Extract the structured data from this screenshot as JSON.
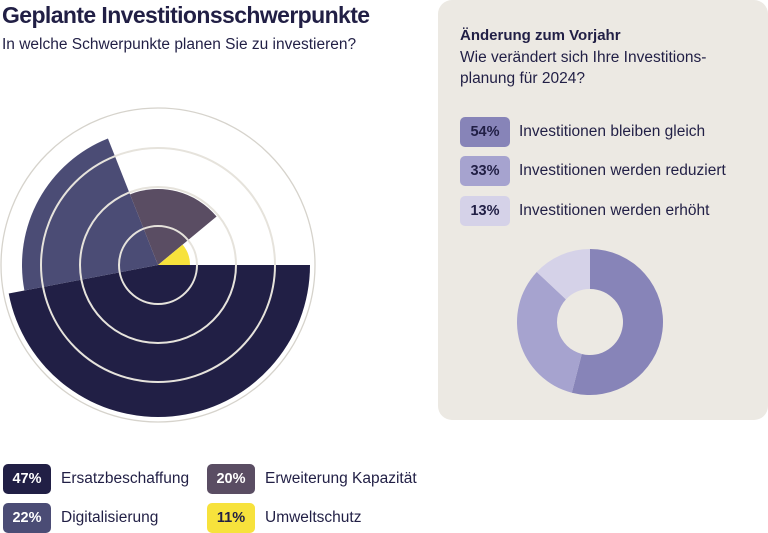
{
  "header": {
    "title": "Geplante Investitionsschwerpunkte",
    "subtitle": "In welche Schwerpunkte planen Sie zu investieren?"
  },
  "chart_data": [
    {
      "type": "polar-area",
      "series": [
        {
          "label": "Ersatzbeschaffung",
          "value": 47,
          "display": "47%",
          "color": "#211f45",
          "text_color": "#ffffff"
        },
        {
          "label": "Digitalisierung",
          "value": 22,
          "display": "22%",
          "color": "#4b4c75",
          "text_color": "#ffffff"
        },
        {
          "label": "Erweiterung Kapazität",
          "value": 20,
          "display": "20%",
          "color": "#5a4d63",
          "text_color": "#ffffff"
        },
        {
          "label": "Umweltschutz",
          "value": 11,
          "display": "11%",
          "color": "#f7e23c",
          "text_color": "#211f45"
        }
      ],
      "grid": true,
      "legend": "bottom"
    },
    {
      "type": "donut",
      "title": "Änderung zum Vorjahr",
      "subtitle": "Wie verändert sich Ihre Investitions-planung für 2024?",
      "series": [
        {
          "label": "Investitionen bleiben gleich",
          "value": 54,
          "display": "54%",
          "color": "#8784b8"
        },
        {
          "label": "Investitionen werden reduziert",
          "value": 33,
          "display": "33%",
          "color": "#a6a3cf"
        },
        {
          "label": "Investitionen werden erhöht",
          "value": 13,
          "display": "13%",
          "color": "#d5d2e8"
        }
      ],
      "legend": "top"
    }
  ],
  "panel": {
    "title": "Änderung zum Vorjahr",
    "subtitle": "Wie verändert sich Ihre Investitions-\nplanung für 2024?",
    "background": "#ece9e3"
  }
}
